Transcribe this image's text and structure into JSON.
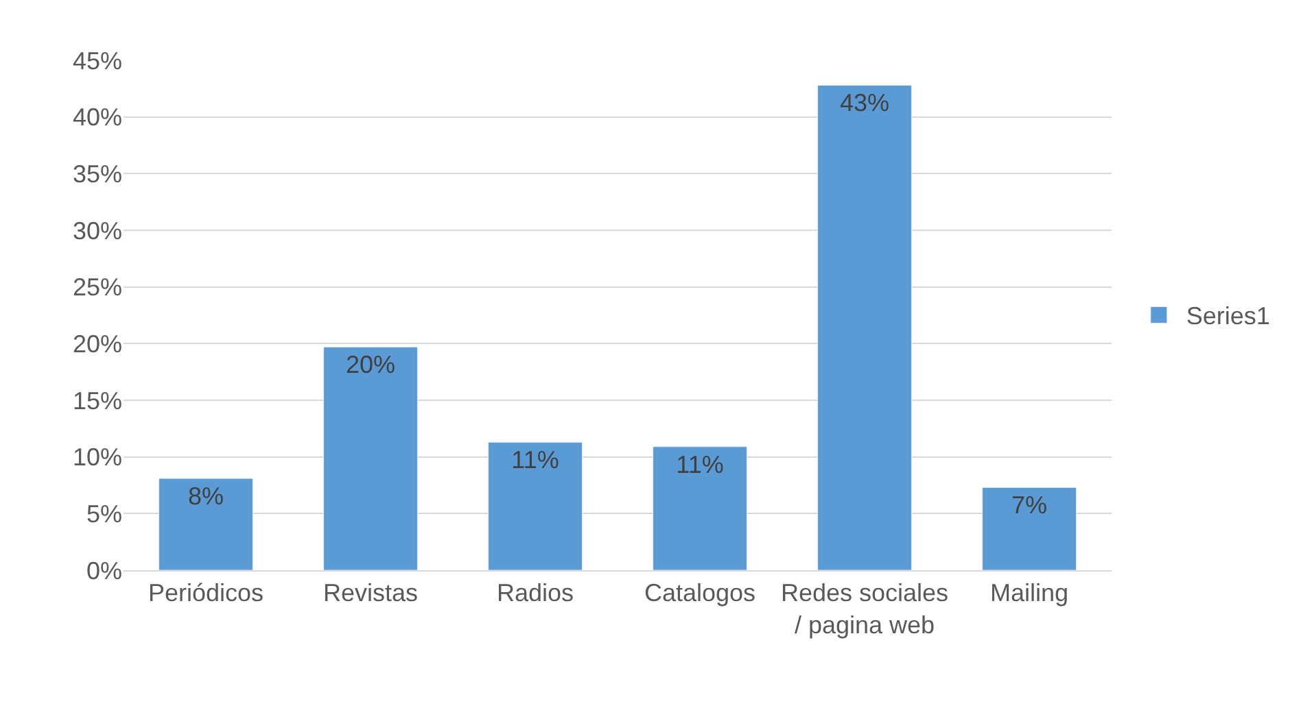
{
  "chart_data": {
    "type": "bar",
    "categories": [
      "Periódicos",
      "Revistas",
      "Radios",
      "Catalogos",
      "Redes sociales / pagina web",
      "Mailing"
    ],
    "series": [
      {
        "name": "Series1",
        "color": "#5b9bd5",
        "values": [
          8.1,
          19.7,
          11.3,
          10.9,
          42.8,
          7.3
        ],
        "value_labels": [
          "8%",
          "20%",
          "11%",
          "11%",
          "43%",
          "7%"
        ]
      }
    ],
    "ylim": [
      0,
      45
    ],
    "yticks": [
      {
        "value": 0,
        "label": "0%"
      },
      {
        "value": 5,
        "label": "5%"
      },
      {
        "value": 10,
        "label": "10%"
      },
      {
        "value": 15,
        "label": "15%"
      },
      {
        "value": 20,
        "label": "20%"
      },
      {
        "value": 25,
        "label": "25%"
      },
      {
        "value": 30,
        "label": "30%"
      },
      {
        "value": 35,
        "label": "35%"
      },
      {
        "value": 40,
        "label": "40%"
      },
      {
        "value": 45,
        "label": "45%"
      }
    ],
    "grid": "y",
    "legend": "right"
  }
}
